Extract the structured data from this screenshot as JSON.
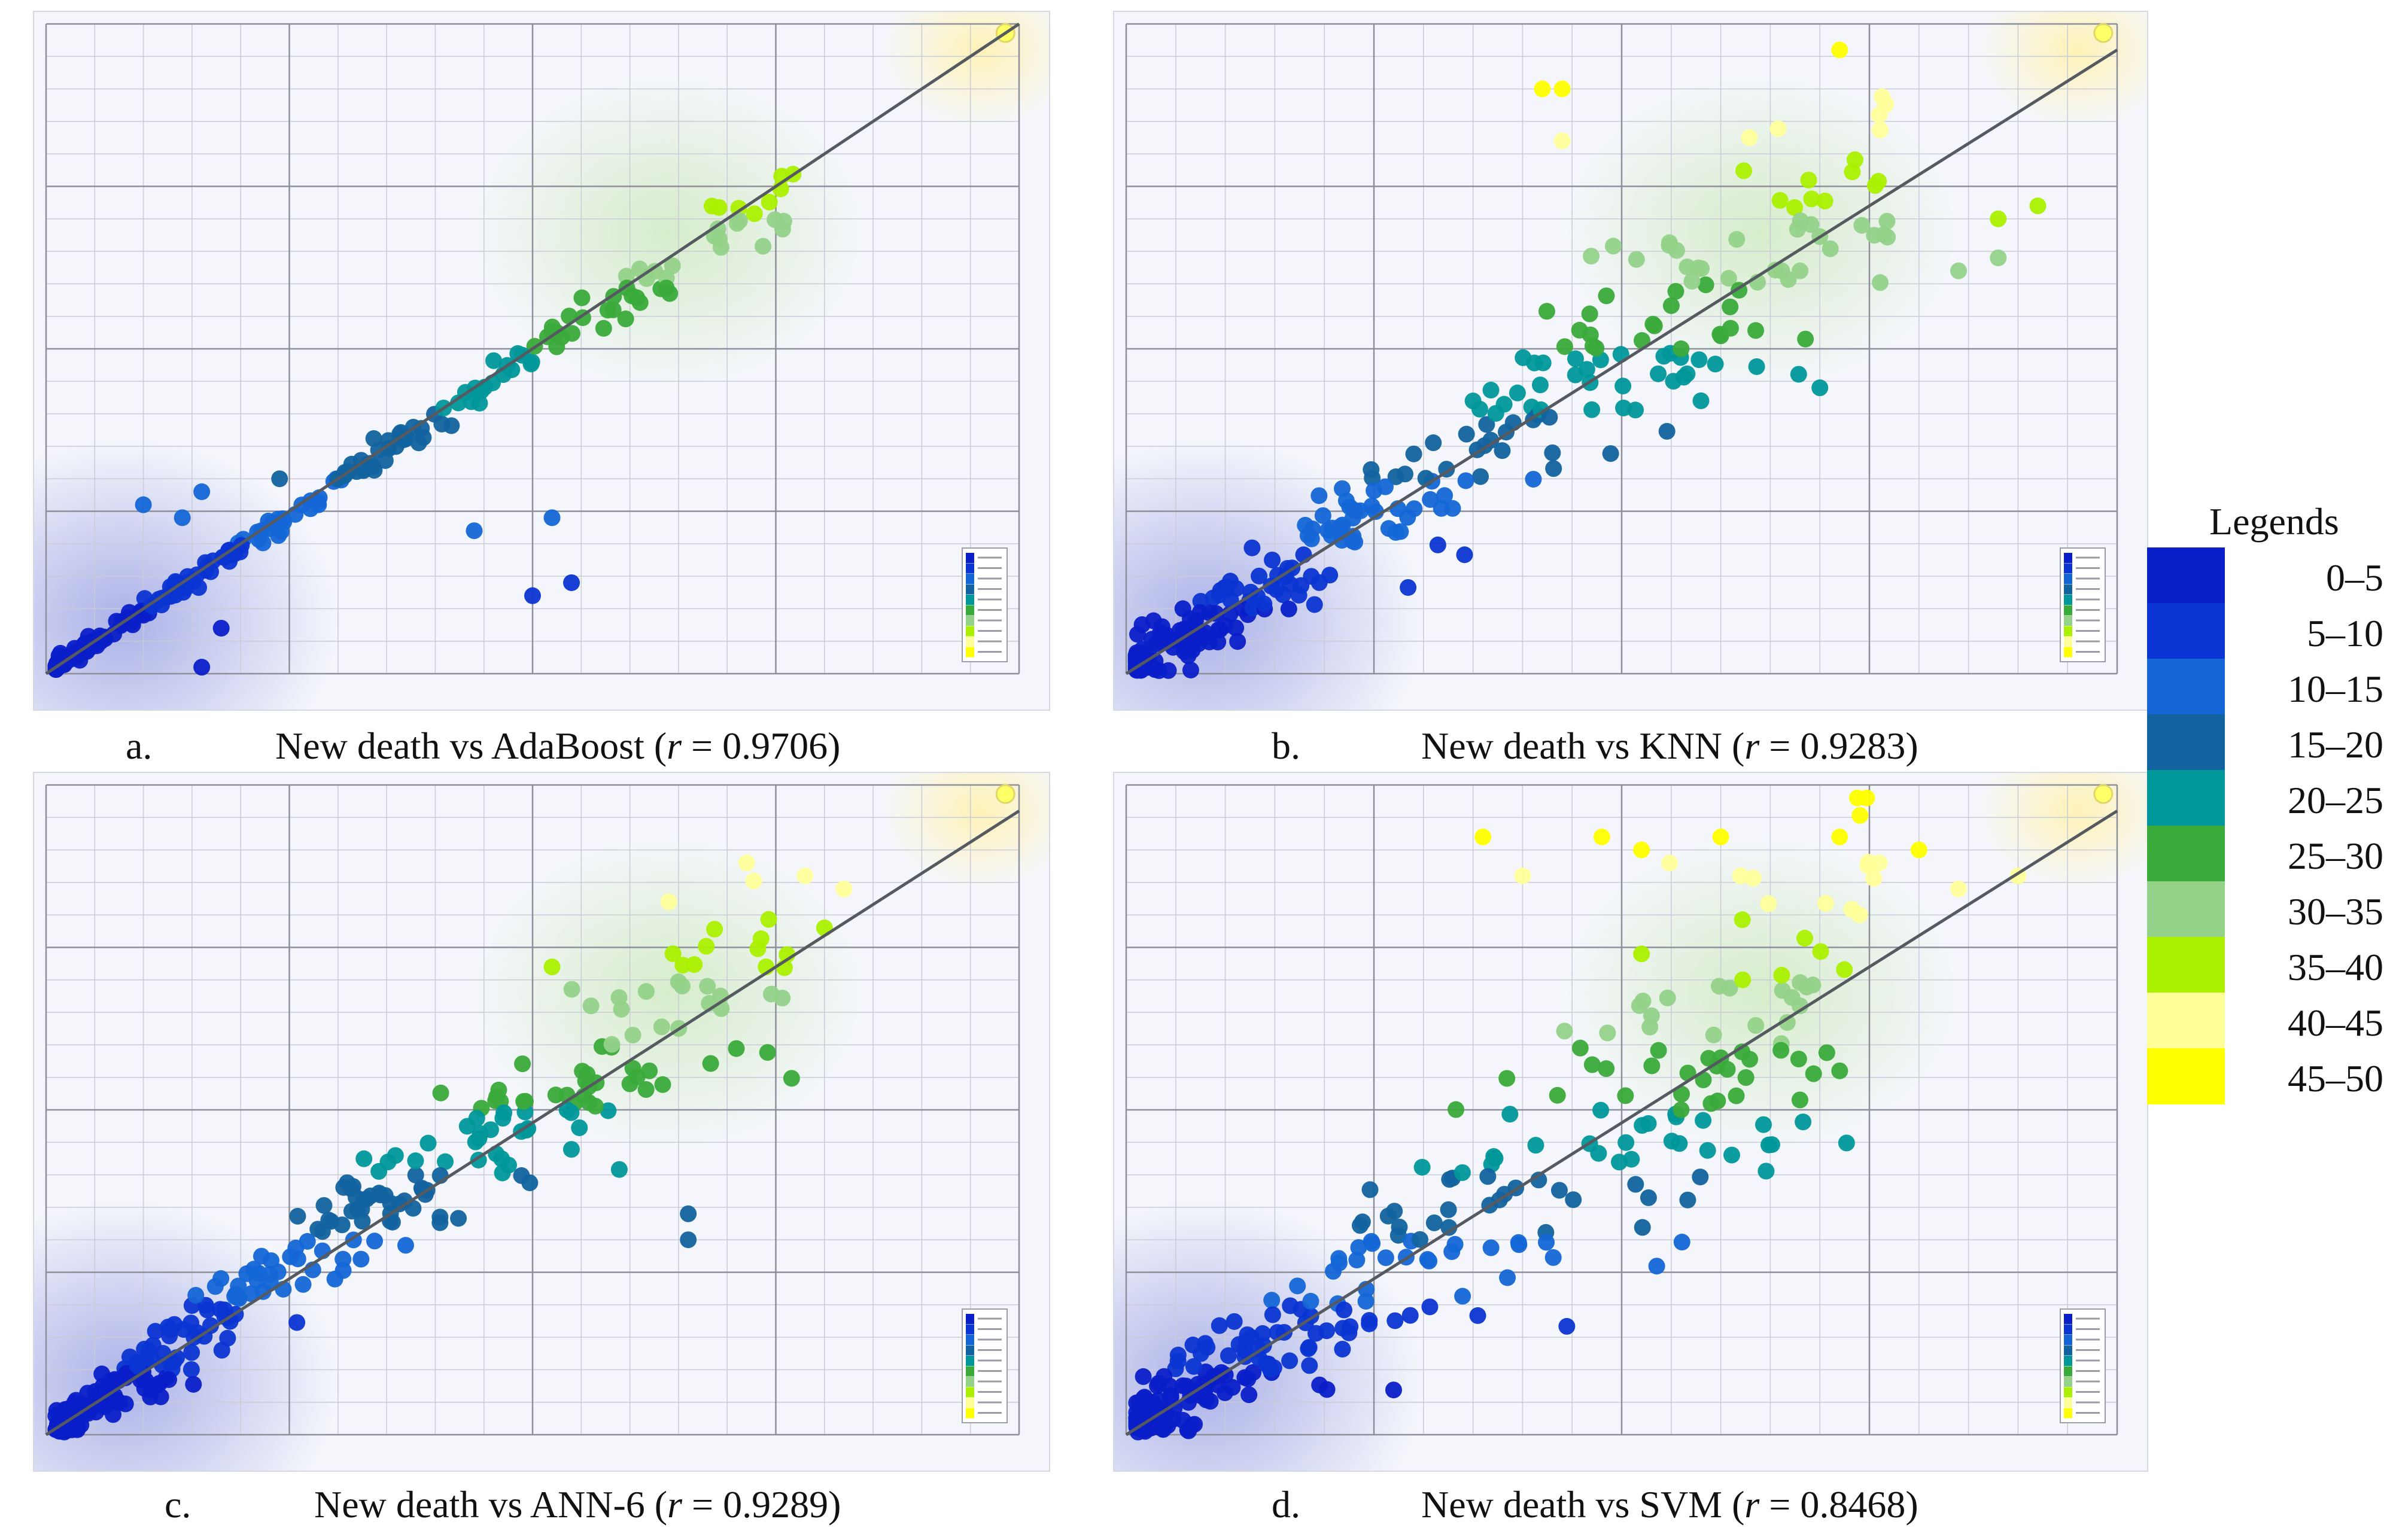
{
  "legend": {
    "title": "Legends",
    "items": [
      {
        "label": "0–5",
        "color": "#0a1fc8"
      },
      {
        "label": "5–10",
        "color": "#0b35d2"
      },
      {
        "label": "10–15",
        "color": "#1466d6"
      },
      {
        "label": "15–20",
        "color": "#12639f"
      },
      {
        "label": "20–25",
        "color": "#00979a"
      },
      {
        "label": "25–30",
        "color": "#3aaa3a"
      },
      {
        "label": "30–35",
        "color": "#94d28a"
      },
      {
        "label": "35–40",
        "color": "#aaf000"
      },
      {
        "label": "40–45",
        "color": "#ffff9a"
      },
      {
        "label": "45–50",
        "color": "#ffff00"
      }
    ]
  },
  "chart_data": [
    {
      "id": "a",
      "type": "scatter",
      "caption_label": "a.",
      "caption_text": "New death vs AdaBoost (",
      "r_label": "r",
      "r_value": " = 0.9706)",
      "xlim": [
        0,
        50
      ],
      "ylim": [
        0,
        50
      ],
      "seed": 11,
      "n": 230,
      "noise": 0.55,
      "fit_line": [
        [
          0,
          0
        ],
        [
          50,
          50
        ]
      ],
      "points_extra": [
        [
          7,
          12
        ],
        [
          12,
          15
        ],
        [
          8,
          0.5
        ],
        [
          9,
          3.5
        ],
        [
          15,
          15
        ],
        [
          25,
          6
        ],
        [
          22,
          11
        ],
        [
          27,
          7
        ],
        [
          26,
          12
        ],
        [
          14,
          13
        ],
        [
          8,
          14
        ],
        [
          5,
          13
        ]
      ]
    },
    {
      "id": "b",
      "type": "scatter",
      "caption_label": "b.",
      "caption_text": "New death vs KNN (",
      "r_label": "r",
      "r_value": " = 0.9283)",
      "xlim": [
        0,
        50
      ],
      "ylim": [
        0,
        50
      ],
      "seed": 23,
      "n": 300,
      "noise": 2.4,
      "fit_line": [
        [
          0,
          0
        ],
        [
          50,
          48
        ]
      ],
      "points_extra": [
        [
          21,
          45
        ],
        [
          22,
          45
        ],
        [
          22,
          41
        ],
        [
          36,
          48
        ],
        [
          38,
          43
        ],
        [
          44,
          35
        ],
        [
          44,
          32
        ],
        [
          42,
          31
        ],
        [
          46,
          36
        ],
        [
          34,
          31
        ],
        [
          35,
          22
        ],
        [
          29,
          21
        ],
        [
          28,
          25
        ],
        [
          30,
          26
        ]
      ]
    },
    {
      "id": "c",
      "type": "scatter",
      "caption_label": "c.",
      "caption_text": "New death vs ANN-6 (",
      "r_label": "r",
      "r_value": " = 0.9289)",
      "xlim": [
        0,
        50
      ],
      "ylim": [
        0,
        50
      ],
      "seed": 37,
      "n": 300,
      "noise": 2.0,
      "fit_line": [
        [
          0,
          0
        ],
        [
          50,
          48
        ]
      ],
      "points_extra": [
        [
          26,
          36
        ],
        [
          28,
          33
        ],
        [
          32,
          41
        ],
        [
          31,
          28
        ],
        [
          33,
          15
        ],
        [
          33,
          17
        ],
        [
          36,
          44
        ],
        [
          39,
          43
        ],
        [
          41,
          42
        ],
        [
          40,
          39
        ],
        [
          37,
          36
        ],
        [
          30,
          27
        ]
      ]
    },
    {
      "id": "d",
      "type": "scatter",
      "caption_label": "d.",
      "caption_text": "New death vs SVM (",
      "r_label": "r",
      "r_value": " = 0.8468)",
      "xlim": [
        0,
        50
      ],
      "ylim": [
        0,
        50
      ],
      "seed": 53,
      "n": 300,
      "noise": 3.8,
      "fit_line": [
        [
          0,
          0
        ],
        [
          50,
          48
        ]
      ],
      "points_extra": [
        [
          18,
          46
        ],
        [
          20,
          43
        ],
        [
          24,
          46
        ],
        [
          26,
          45
        ],
        [
          30,
          46
        ],
        [
          31,
          43
        ],
        [
          36,
          46
        ],
        [
          38,
          44
        ],
        [
          40,
          45
        ],
        [
          42,
          42
        ],
        [
          45,
          43
        ],
        [
          37,
          40
        ],
        [
          34,
          33
        ],
        [
          36,
          28
        ],
        [
          28,
          25
        ],
        [
          30,
          29
        ],
        [
          26,
          37
        ]
      ]
    }
  ]
}
